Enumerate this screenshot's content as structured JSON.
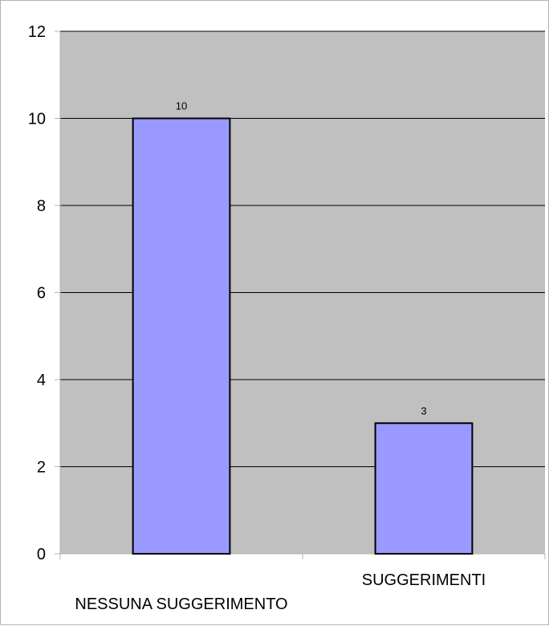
{
  "chart_data": {
    "type": "bar",
    "categories": [
      "NESSUNA SUGGERIMENTO",
      "SUGGERIMENTI"
    ],
    "values": [
      10,
      3
    ],
    "title": "",
    "xlabel": "",
    "ylabel": "",
    "ylim": [
      0,
      12
    ],
    "yticks": [
      0,
      2,
      4,
      6,
      8,
      10,
      12
    ],
    "grid": true,
    "legend": "none",
    "data_labels": true
  },
  "colors": {
    "plot_background": "#c0c0c0",
    "bar_fill": "#9999ff",
    "bar_stroke": "#000000",
    "gridline": "#000000",
    "axis": "#b3b3b3"
  }
}
